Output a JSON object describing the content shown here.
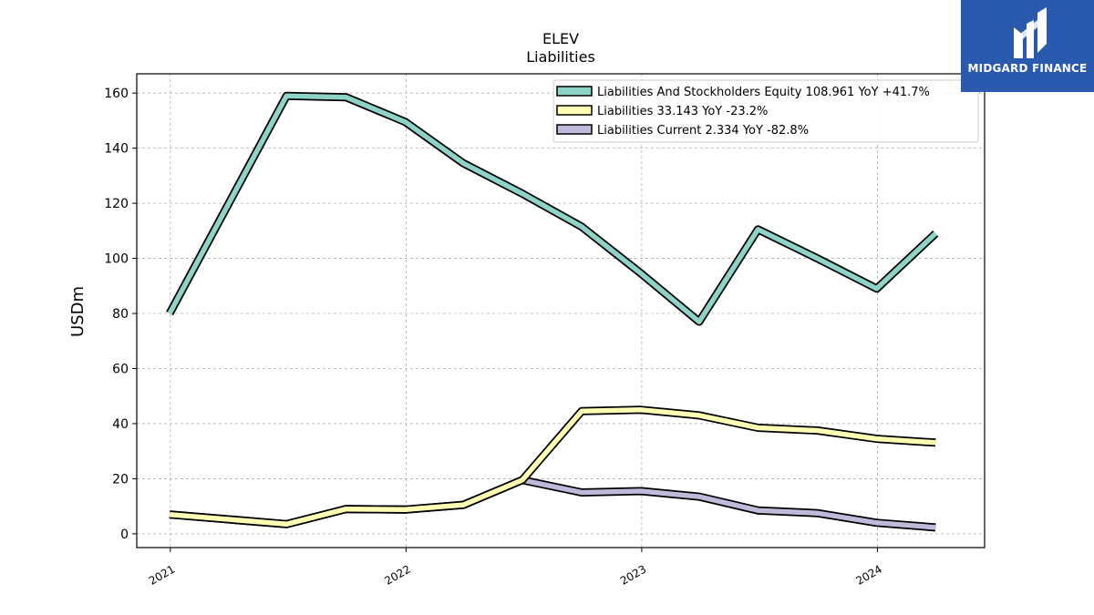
{
  "chart_data": {
    "type": "line",
    "title": "ELEV",
    "subtitle": "Liabilities",
    "ylabel": "USDm",
    "xlabel": "",
    "ylim": [
      -5,
      167
    ],
    "xlim": [
      "2020-11-10",
      "2024-06-15"
    ],
    "yticks": [
      0,
      20,
      40,
      60,
      80,
      100,
      120,
      140,
      160
    ],
    "xticks": [
      {
        "date": "2021-01-01",
        "label": "2021"
      },
      {
        "date": "2022-01-01",
        "label": "2022"
      },
      {
        "date": "2023-01-01",
        "label": "2023"
      },
      {
        "date": "2024-01-01",
        "label": "2024"
      }
    ],
    "grid": true,
    "legend_position": "top-right",
    "x": [
      "2020-12-31",
      "2021-06-30",
      "2021-09-30",
      "2021-12-31",
      "2022-03-31",
      "2022-06-30",
      "2022-09-30",
      "2022-12-31",
      "2023-03-31",
      "2023-06-30",
      "2023-09-30",
      "2023-12-31",
      "2024-03-31"
    ],
    "series": [
      {
        "name": "Liabilities And Stockholders Equity",
        "legend_label": "Liabilities And Stockholders Equity  108.961 YoY +41.7%",
        "color": "#8dd3c7",
        "values": [
          80.0,
          159.0,
          158.5,
          149.5,
          134.5,
          123.5,
          111.5,
          94.5,
          77.0,
          110.5,
          100.0,
          89.0,
          109.0
        ]
      },
      {
        "name": "Liabilities",
        "legend_label": "Liabilities  33.143 YoY -23.2%",
        "color": "#ffffb3",
        "values": [
          7.0,
          3.5,
          9.0,
          8.8,
          10.5,
          19.5,
          44.5,
          45.0,
          43.0,
          38.5,
          37.5,
          34.5,
          33.1
        ]
      },
      {
        "name": "Liabilities Current",
        "legend_label": "Liabilities Current  2.334 YoY -82.8%",
        "color": "#bebada",
        "values": [
          7.0,
          3.5,
          9.0,
          8.8,
          10.5,
          19.5,
          15.0,
          15.5,
          13.5,
          8.5,
          7.5,
          4.0,
          2.3
        ]
      }
    ]
  },
  "logo": {
    "text": "MIDGARD FINANCE",
    "color": "#2a5aad"
  }
}
